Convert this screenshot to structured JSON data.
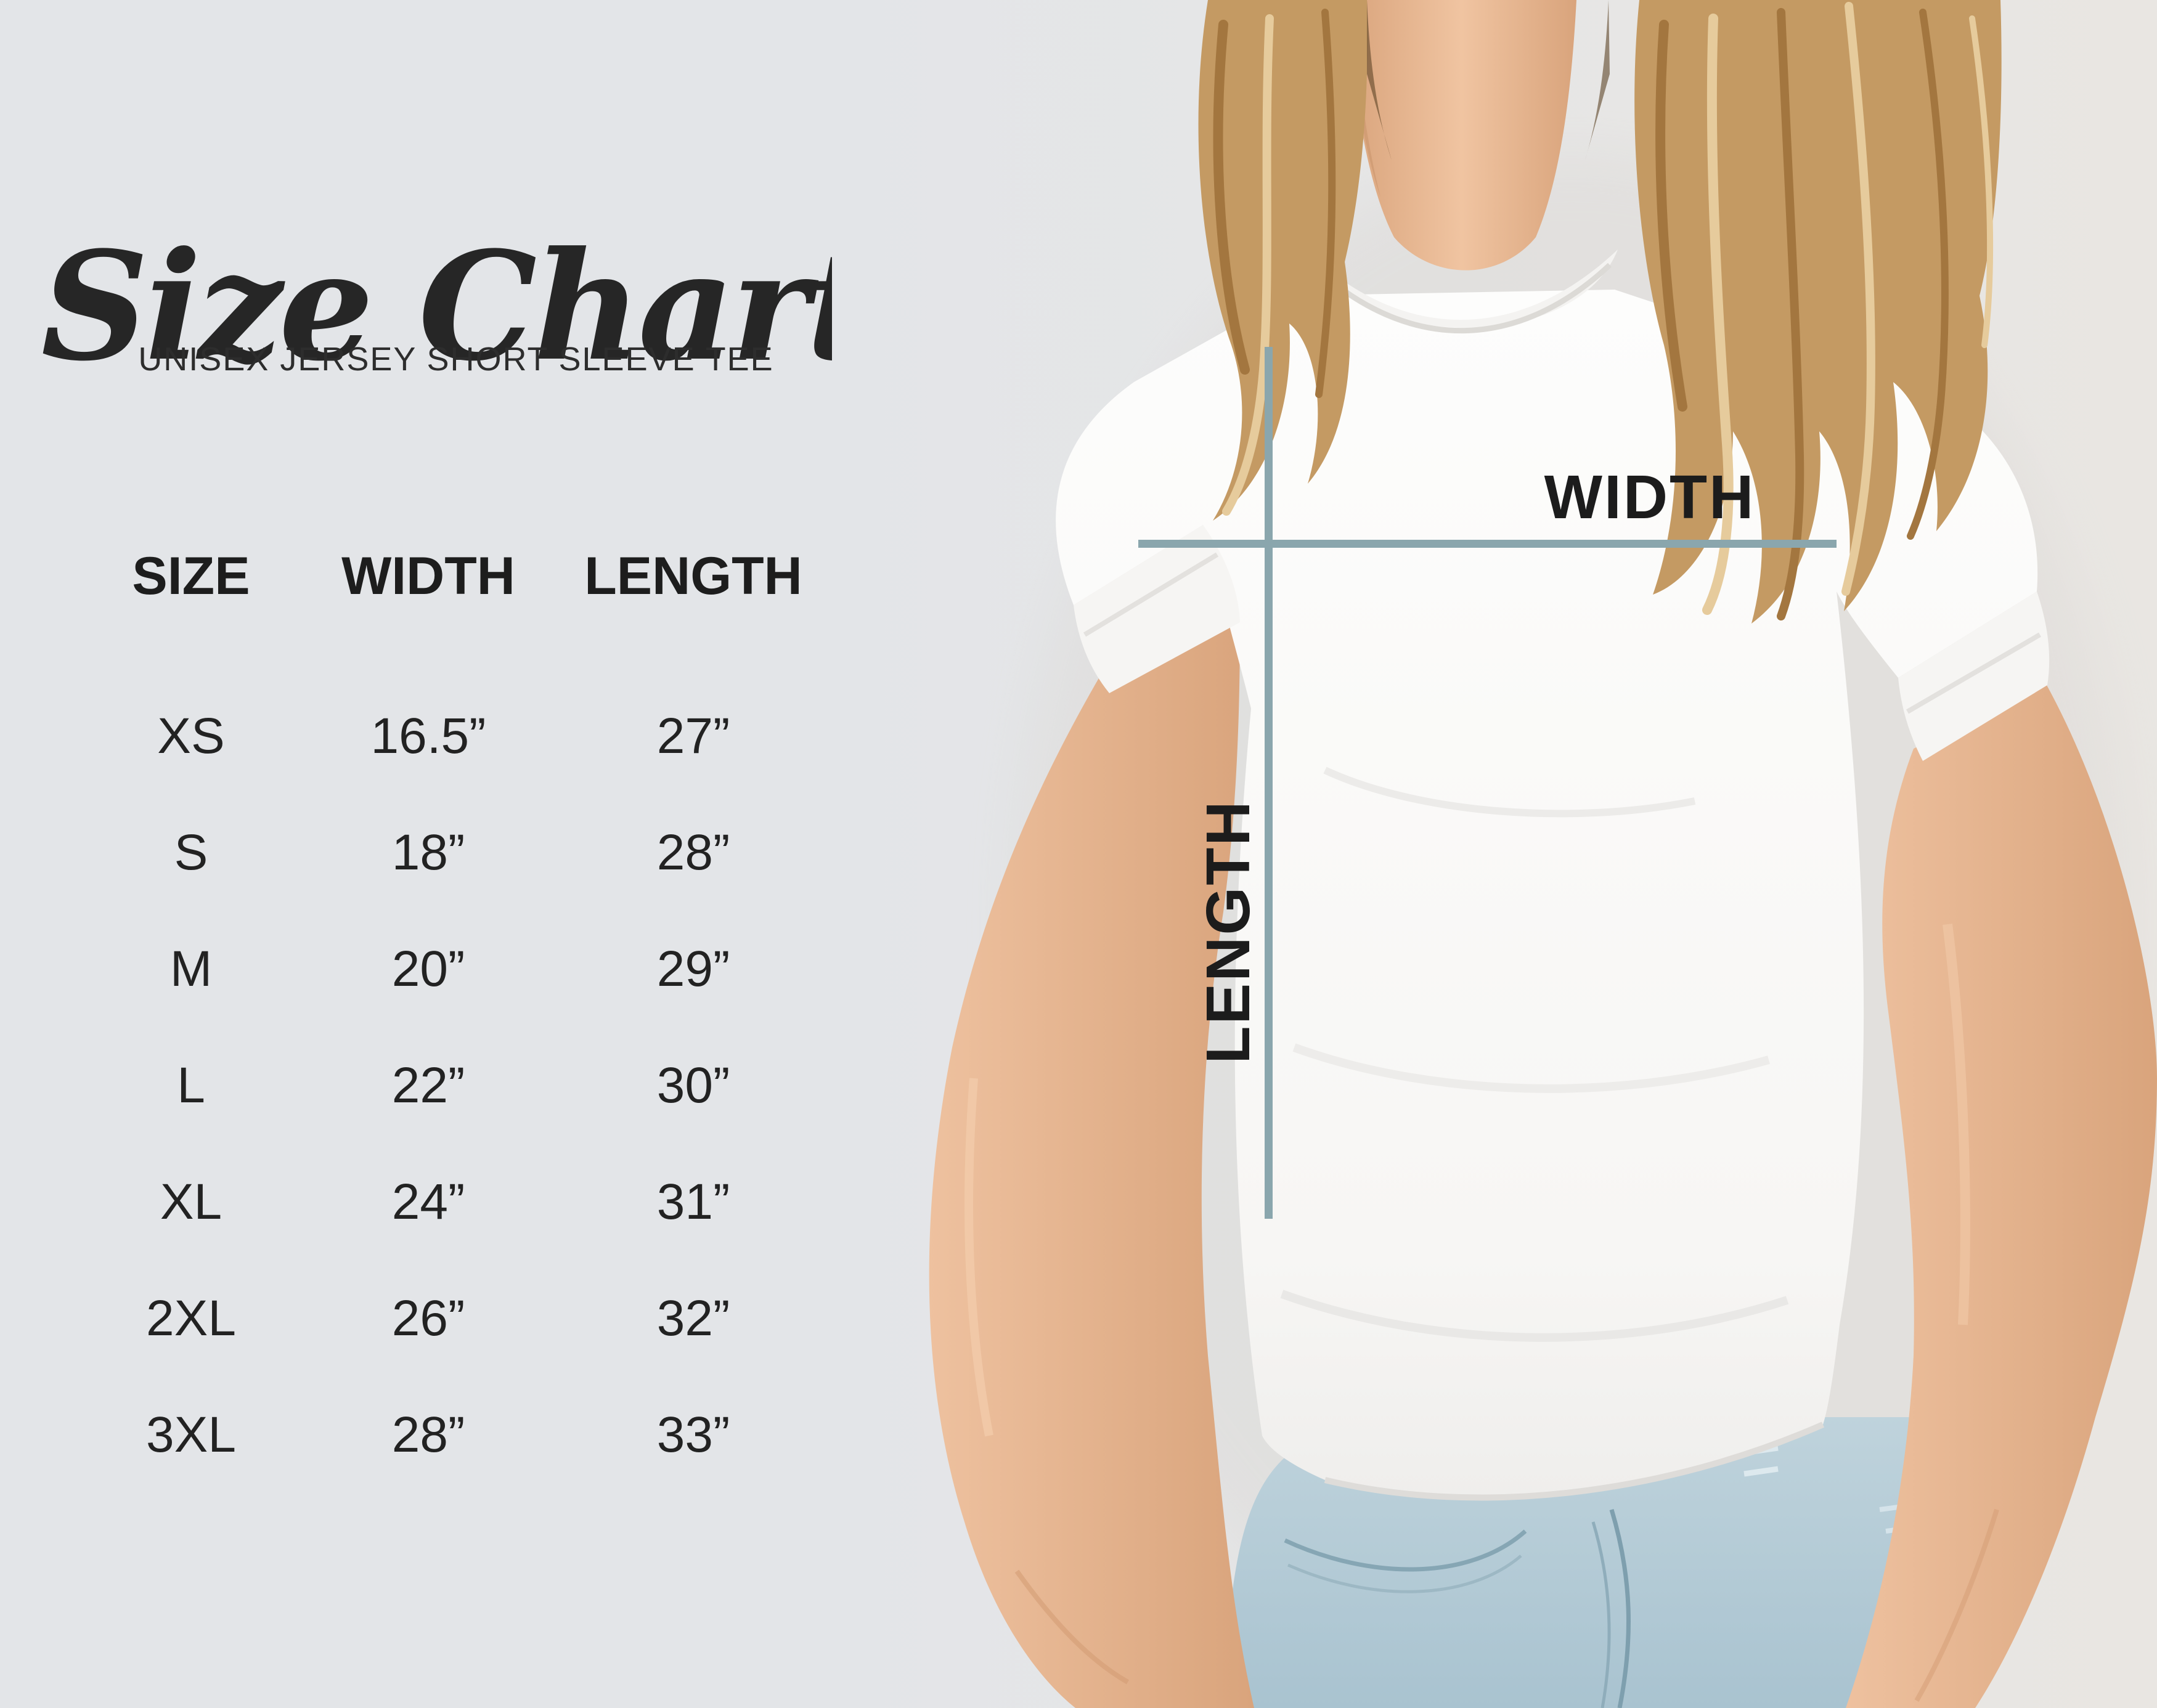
{
  "page": {
    "background": "#e3e5e8"
  },
  "header": {
    "title": "Size Chart",
    "subtitle": "UNISEX JERSEY SHORT SLEEVE TEE"
  },
  "size_table": {
    "columns": [
      "SIZE",
      "WIDTH",
      "LENGTH"
    ],
    "rows": [
      {
        "size": "XS",
        "width": "16.5”",
        "length": "27”"
      },
      {
        "size": "S",
        "width": "18”",
        "length": "28”"
      },
      {
        "size": "M",
        "width": "20”",
        "length": "29”"
      },
      {
        "size": "L",
        "width": "22”",
        "length": "30”"
      },
      {
        "size": "XL",
        "width": "24”",
        "length": "31”"
      },
      {
        "size": "2XL",
        "width": "26”",
        "length": "32”"
      },
      {
        "size": "3XL",
        "width": "28”",
        "length": "33”"
      }
    ]
  },
  "diagram": {
    "width_label": "WIDTH",
    "length_label": "LENGTH",
    "line_color": "#8aa6ad"
  },
  "chart_data": {
    "type": "table",
    "title": "Size Chart",
    "subtitle": "UNISEX JERSEY SHORT SLEEVE TEE",
    "columns": [
      "SIZE",
      "WIDTH",
      "LENGTH"
    ],
    "rows": [
      [
        "XS",
        "16.5”",
        "27”"
      ],
      [
        "S",
        "18”",
        "28”"
      ],
      [
        "M",
        "20”",
        "29”"
      ],
      [
        "L",
        "22”",
        "30”"
      ],
      [
        "XL",
        "24”",
        "31”"
      ],
      [
        "2XL",
        "26”",
        "32”"
      ],
      [
        "3XL",
        "28”",
        "33”"
      ]
    ],
    "annotations": [
      "WIDTH",
      "LENGTH"
    ],
    "units": "inches"
  }
}
